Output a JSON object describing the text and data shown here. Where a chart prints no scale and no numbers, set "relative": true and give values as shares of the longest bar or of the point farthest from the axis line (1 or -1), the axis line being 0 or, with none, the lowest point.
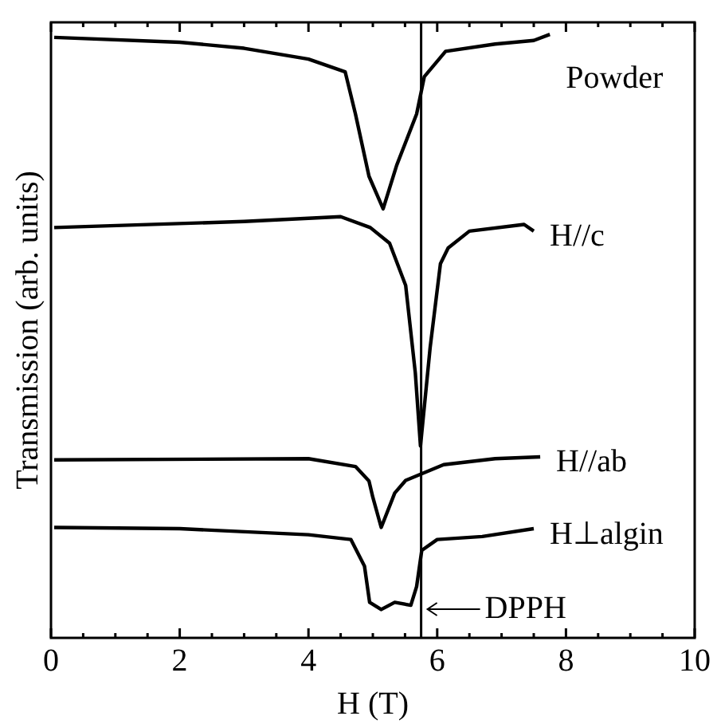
{
  "chart_data": {
    "type": "line",
    "relative": true,
    "xlabel": "H (T)",
    "ylabel": "Transmission (arb. units)",
    "xlim": [
      0,
      10
    ],
    "xticks": [
      0,
      2,
      4,
      6,
      8,
      10
    ],
    "tick_labels": "x",
    "legend": false,
    "grid": false,
    "marker": "none",
    "line_style": "solid",
    "series": [
      {
        "name": "Powder",
        "color": "#000000",
        "x": [
          0.05,
          2,
          3,
          4,
          4.57,
          4.73,
          4.94,
          5.16,
          5.37,
          5.68,
          5.8,
          6.13,
          6.9,
          7.5,
          7.75
        ],
        "values": [
          0.995,
          0.987,
          0.977,
          0.959,
          0.938,
          0.868,
          0.765,
          0.711,
          0.783,
          0.868,
          0.93,
          0.972,
          0.984,
          0.99,
          1.0
        ]
      },
      {
        "name": "H//c",
        "color": "#000000",
        "x": [
          0.05,
          3,
          4.5,
          4.96,
          5.26,
          5.51,
          5.66,
          5.74,
          5.89,
          6.05,
          6.17,
          6.5,
          7.35,
          7.5
        ],
        "values": [
          0.68,
          0.69,
          0.698,
          0.68,
          0.654,
          0.584,
          0.439,
          0.318,
          0.481,
          0.62,
          0.646,
          0.674,
          0.685,
          0.674
        ]
      },
      {
        "name": "H//ab",
        "color": "#000000",
        "x": [
          0.05,
          4,
          4.73,
          4.94,
          5.0,
          5.13,
          5.34,
          5.51,
          6.1,
          6.9,
          7.6
        ],
        "values": [
          0.295,
          0.297,
          0.284,
          0.26,
          0.233,
          0.183,
          0.24,
          0.261,
          0.287,
          0.297,
          0.3
        ]
      },
      {
        "name": "H⊥algin",
        "color": "#000000",
        "x": [
          0.05,
          2,
          4,
          4.66,
          4.87,
          4.95,
          5.13,
          5.34,
          5.59,
          5.68,
          5.76,
          6.0,
          6.7,
          7.5
        ],
        "values": [
          0.183,
          0.181,
          0.171,
          0.163,
          0.119,
          0.059,
          0.047,
          0.059,
          0.054,
          0.085,
          0.145,
          0.163,
          0.168,
          0.181
        ]
      }
    ],
    "ref_lines": [
      {
        "axis": "x",
        "value": 5.75,
        "label": "DPPH",
        "color": "#000000",
        "line_style": "solid"
      }
    ]
  }
}
